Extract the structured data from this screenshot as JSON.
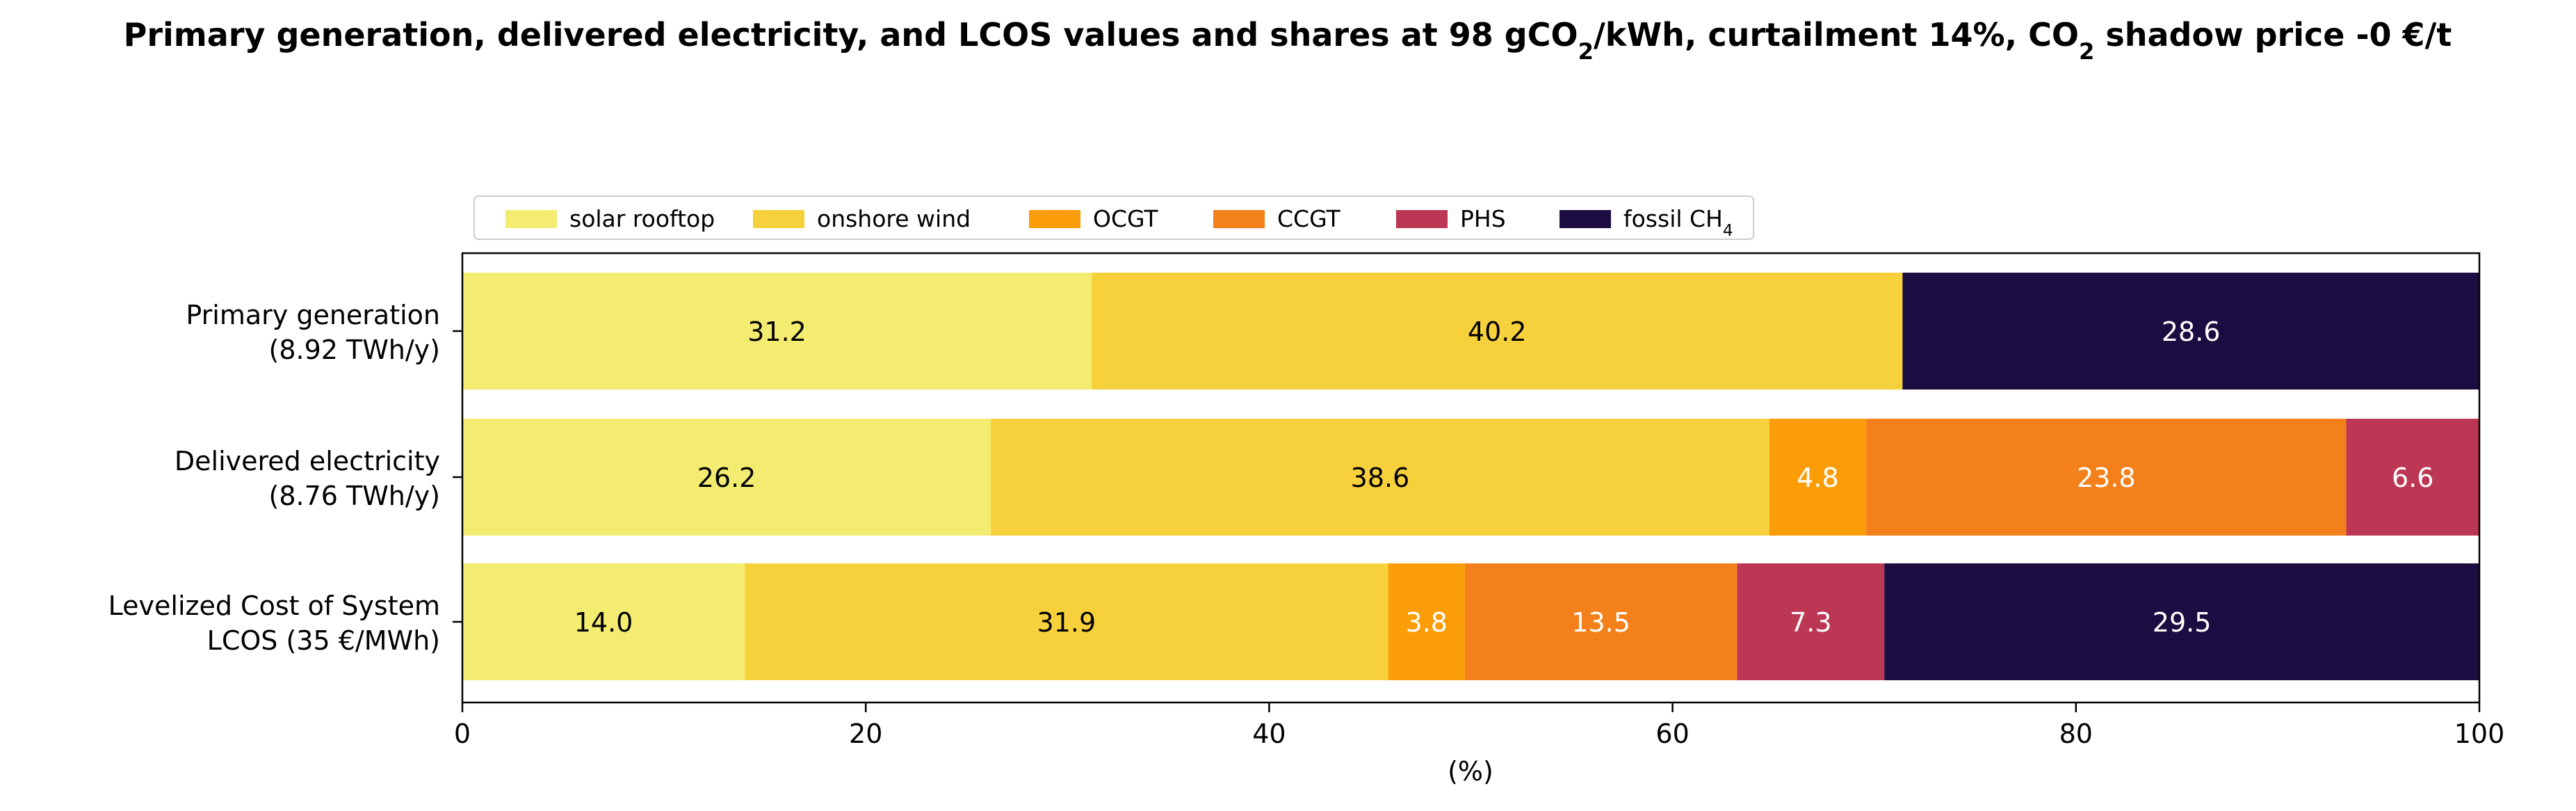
{
  "chart_data": {
    "type": "bar",
    "orientation": "horizontal",
    "stacked": true,
    "title_parts": [
      {
        "t": "Primary generation, delivered electricity, and LCOS values and shares at 98 gCO"
      },
      {
        "t": "2",
        "sub": true
      },
      {
        "t": "/kWh, curtailment 14%, CO"
      },
      {
        "t": "2",
        "sub": true
      },
      {
        "t": " shadow price -0 €/t"
      }
    ],
    "xlabel": "(%)",
    "xlim": [
      0,
      100
    ],
    "xticks": [
      0,
      20,
      40,
      60,
      80,
      100
    ],
    "grid": false,
    "legend_position": "top-left, above plot",
    "legend": [
      {
        "key": "solar",
        "parts": [
          {
            "t": "solar rooftop"
          }
        ]
      },
      {
        "key": "wind",
        "parts": [
          {
            "t": "onshore wind"
          }
        ]
      },
      {
        "key": "ocgt",
        "parts": [
          {
            "t": "OCGT"
          }
        ]
      },
      {
        "key": "ccgt",
        "parts": [
          {
            "t": "CCGT"
          }
        ]
      },
      {
        "key": "phs",
        "parts": [
          {
            "t": "PHS"
          }
        ]
      },
      {
        "key": "ch4",
        "parts": [
          {
            "t": "fossil CH"
          },
          {
            "t": "4",
            "sub": true
          }
        ]
      }
    ],
    "colors": {
      "solar": "#f3ec71",
      "wind": "#f7d13b",
      "ocgt": "#fb9d08",
      "ccgt": "#f4801b",
      "phs": "#bc3754",
      "ch4": "#1b0c41"
    },
    "label_colors": {
      "solar": "#000000",
      "wind": "#000000",
      "ocgt": "#ffffff",
      "ccgt": "#ffffff",
      "phs": "#ffffff",
      "ch4": "#ffffff"
    },
    "categories": [
      {
        "name": "primary",
        "label": [
          "Primary generation",
          "(8.92 TWh/y)"
        ]
      },
      {
        "name": "delivered",
        "label": [
          "Delivered electricity",
          "(8.76 TWh/y)"
        ]
      },
      {
        "name": "lcos",
        "label": [
          "Levelized Cost of System",
          "LCOS  (35 €/MWh)"
        ]
      }
    ],
    "series": [
      {
        "key": "solar",
        "values": [
          31.2,
          26.2,
          14.0
        ],
        "labels": [
          "31.2",
          "26.2",
          "14.0"
        ]
      },
      {
        "key": "wind",
        "values": [
          40.2,
          38.6,
          31.9
        ],
        "labels": [
          "40.2",
          "38.6",
          "31.9"
        ]
      },
      {
        "key": "ocgt",
        "values": [
          0,
          4.8,
          3.8
        ],
        "labels": [
          "",
          "4.8",
          "3.8"
        ]
      },
      {
        "key": "ccgt",
        "values": [
          0,
          23.8,
          13.5
        ],
        "labels": [
          "",
          "23.8",
          "13.5"
        ]
      },
      {
        "key": "phs",
        "values": [
          0,
          6.6,
          7.3
        ],
        "labels": [
          "",
          "6.6",
          "7.3"
        ]
      },
      {
        "key": "ch4",
        "values": [
          28.6,
          0,
          29.5
        ],
        "labels": [
          "28.6",
          "",
          "29.5"
        ]
      }
    ]
  }
}
